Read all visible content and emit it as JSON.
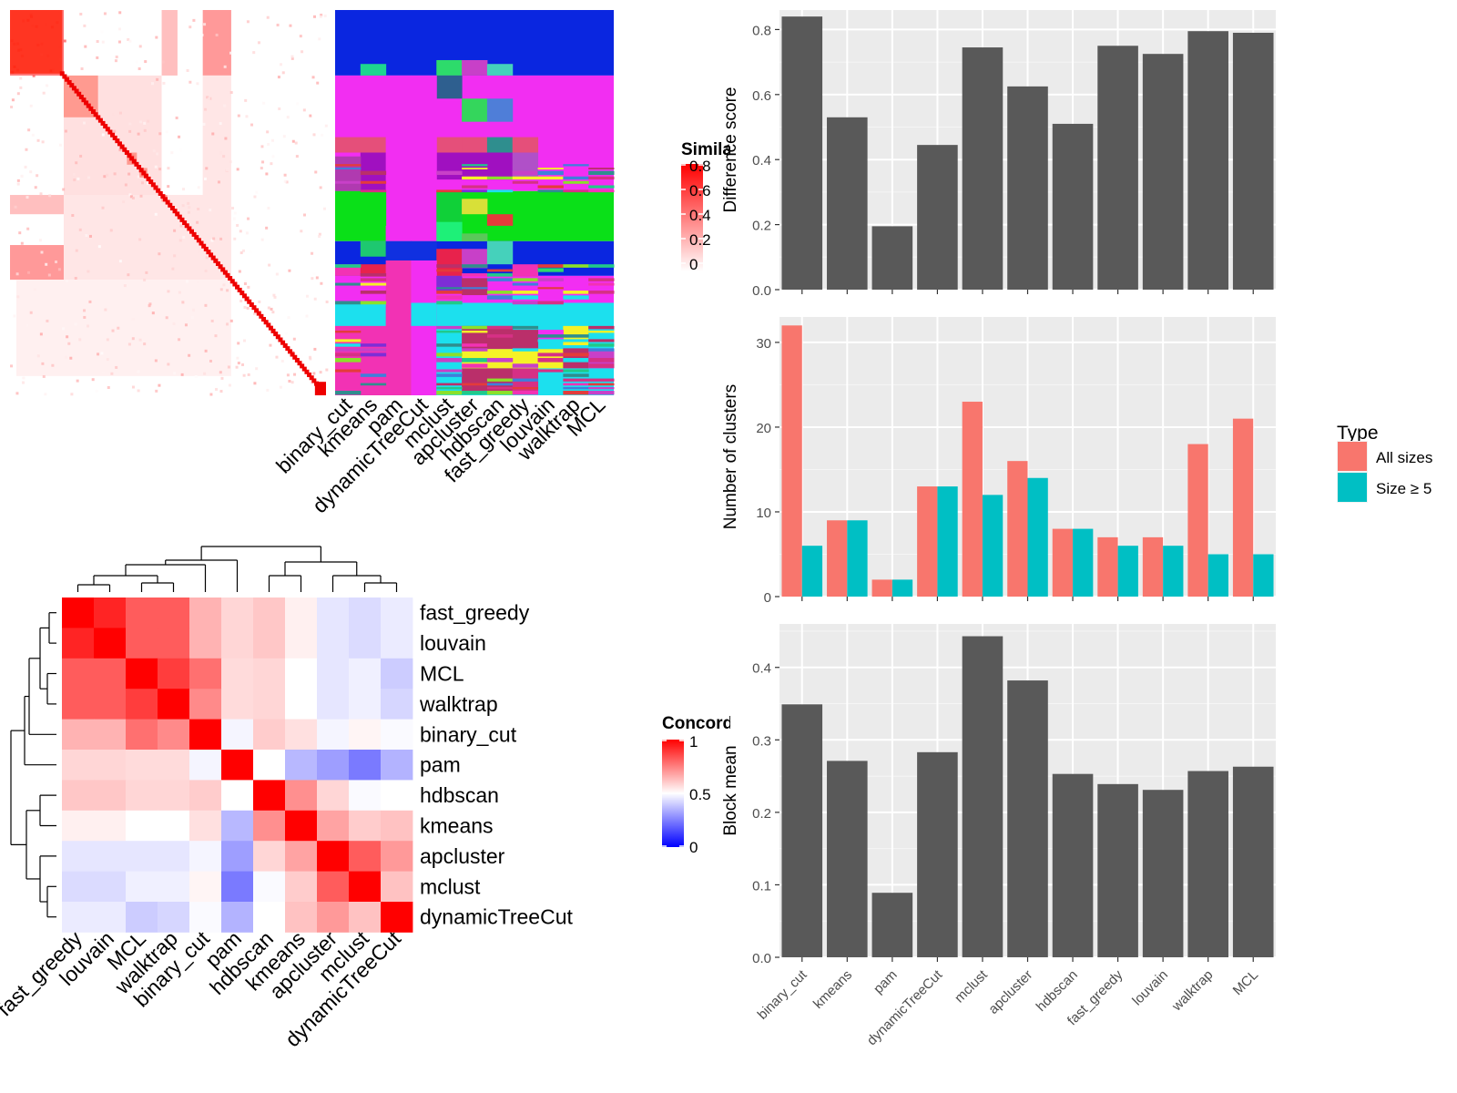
{
  "chart_data": [
    {
      "type": "heatmap",
      "id": "cell-similarity",
      "legend_title": "Similarity",
      "legend_ticks": [
        "0.8",
        "0.6",
        "0.4",
        "0.2",
        "0"
      ],
      "colors": {
        "low": "#ffffff",
        "high": "#ff0000"
      }
    },
    {
      "type": "heatmap",
      "id": "cluster-assignments",
      "columns": [
        "binary_cut",
        "kmeans",
        "pam",
        "dynamicTreeCut",
        "mclust",
        "apcluster",
        "hdbscan",
        "fast_greedy",
        "louvain",
        "walktrap",
        "MCL"
      ]
    },
    {
      "type": "heatmap",
      "id": "concordance",
      "legend_title": "Concordance",
      "legend_ticks": [
        "1",
        "0.5",
        "0"
      ],
      "colors": {
        "low": "#0000ff",
        "mid": "#ffffff",
        "high": "#ff0000"
      },
      "rows": [
        "fast_greedy",
        "louvain",
        "MCL",
        "walktrap",
        "binary_cut",
        "pam",
        "hdbscan",
        "kmeans",
        "apcluster",
        "mclust",
        "dynamicTreeCut"
      ],
      "columns": [
        "fast_greedy",
        "louvain",
        "MCL",
        "walktrap",
        "binary_cut",
        "pam",
        "hdbscan",
        "kmeans",
        "apcluster",
        "mclust",
        "dynamicTreeCut"
      ],
      "values": [
        [
          1.0,
          0.93,
          0.82,
          0.82,
          0.65,
          0.58,
          0.61,
          0.53,
          0.45,
          0.43,
          0.46
        ],
        [
          0.93,
          1.0,
          0.82,
          0.82,
          0.65,
          0.58,
          0.61,
          0.53,
          0.45,
          0.43,
          0.46
        ],
        [
          0.82,
          0.82,
          1.0,
          0.88,
          0.78,
          0.57,
          0.58,
          0.5,
          0.45,
          0.47,
          0.4
        ],
        [
          0.82,
          0.82,
          0.88,
          1.0,
          0.73,
          0.57,
          0.58,
          0.5,
          0.45,
          0.47,
          0.42
        ],
        [
          0.65,
          0.65,
          0.78,
          0.73,
          1.0,
          0.48,
          0.6,
          0.56,
          0.48,
          0.52,
          0.49
        ],
        [
          0.58,
          0.58,
          0.57,
          0.57,
          0.48,
          1.0,
          0.5,
          0.36,
          0.31,
          0.24,
          0.35
        ],
        [
          0.61,
          0.61,
          0.58,
          0.58,
          0.6,
          0.5,
          1.0,
          0.72,
          0.58,
          0.49,
          0.5
        ],
        [
          0.53,
          0.53,
          0.5,
          0.5,
          0.56,
          0.36,
          0.72,
          1.0,
          0.68,
          0.6,
          0.62
        ],
        [
          0.45,
          0.45,
          0.45,
          0.45,
          0.48,
          0.31,
          0.58,
          0.68,
          1.0,
          0.82,
          0.7
        ],
        [
          0.43,
          0.43,
          0.47,
          0.47,
          0.52,
          0.24,
          0.49,
          0.6,
          0.82,
          1.0,
          0.62
        ],
        [
          0.46,
          0.46,
          0.4,
          0.42,
          0.49,
          0.35,
          0.5,
          0.62,
          0.7,
          0.62,
          1.0
        ]
      ]
    },
    {
      "type": "bar",
      "id": "difference-score",
      "categories": [
        "binary_cut",
        "kmeans",
        "pam",
        "dynamicTreeCut",
        "mclust",
        "apcluster",
        "hdbscan",
        "fast_greedy",
        "louvain",
        "walktrap",
        "MCL"
      ],
      "values": [
        0.84,
        0.53,
        0.195,
        0.445,
        0.745,
        0.625,
        0.51,
        0.75,
        0.725,
        0.795,
        0.79
      ],
      "ylabel": "Difference score",
      "ylim": [
        0,
        0.86
      ],
      "yticks": [
        "0.0",
        "0.2",
        "0.4",
        "0.6",
        "0.8"
      ],
      "bar_color": "#595959",
      "grid": true
    },
    {
      "type": "bar",
      "id": "number-of-clusters",
      "categories": [
        "binary_cut",
        "kmeans",
        "pam",
        "dynamicTreeCut",
        "mclust",
        "apcluster",
        "hdbscan",
        "fast_greedy",
        "louvain",
        "walktrap",
        "MCL"
      ],
      "series": [
        {
          "name": "All sizes",
          "color": "#f8766d",
          "values": [
            32,
            9,
            2,
            13,
            23,
            16,
            8,
            7,
            7,
            18,
            21
          ]
        },
        {
          "name": "Size ≥ 5",
          "color": "#00bfc4",
          "values": [
            6,
            9,
            2,
            13,
            12,
            14,
            8,
            6,
            6,
            5,
            5
          ]
        }
      ],
      "ylabel": "Number of clusters",
      "ylim": [
        0,
        33
      ],
      "yticks": [
        "0",
        "10",
        "20",
        "30"
      ],
      "legend_title": "Type",
      "legend_position": "right",
      "grid": true
    },
    {
      "type": "bar",
      "id": "block-mean",
      "categories": [
        "binary_cut",
        "kmeans",
        "pam",
        "dynamicTreeCut",
        "mclust",
        "apcluster",
        "hdbscan",
        "fast_greedy",
        "louvain",
        "walktrap",
        "MCL"
      ],
      "values": [
        0.349,
        0.271,
        0.089,
        0.283,
        0.443,
        0.382,
        0.253,
        0.239,
        0.231,
        0.257,
        0.263
      ],
      "ylabel": "Block mean",
      "ylim": [
        0,
        0.46
      ],
      "yticks": [
        "0.0",
        "0.1",
        "0.2",
        "0.3",
        "0.4"
      ],
      "bar_color": "#595959",
      "grid": true
    }
  ]
}
